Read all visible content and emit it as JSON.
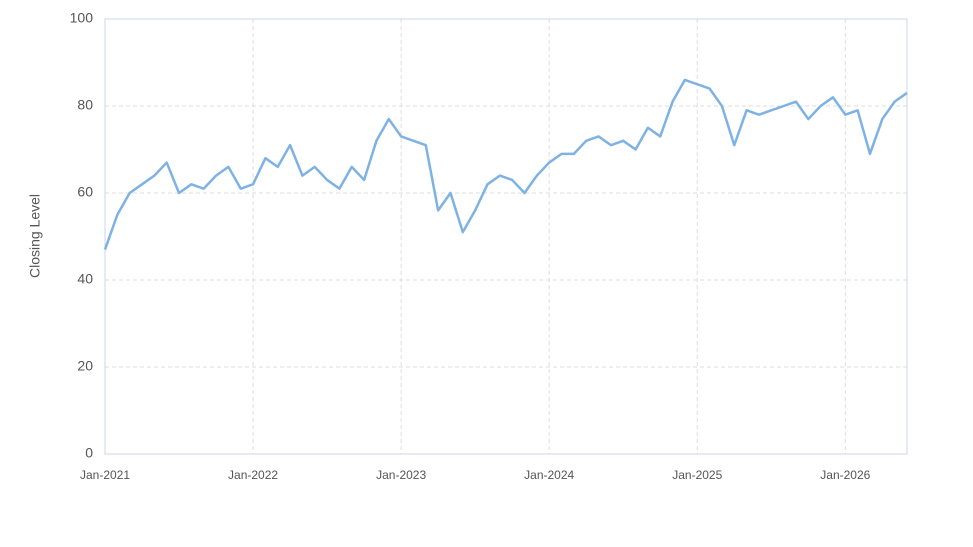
{
  "chart_data": {
    "type": "line",
    "y_label": "Closing Level",
    "x": [
      "2021-01",
      "2021-02",
      "2021-03",
      "2021-04",
      "2021-05",
      "2021-06",
      "2021-07",
      "2021-08",
      "2021-09",
      "2021-10",
      "2021-11",
      "2021-12",
      "2022-01",
      "2022-02",
      "2022-03",
      "2022-04",
      "2022-05",
      "2022-06",
      "2022-07",
      "2022-08",
      "2022-09",
      "2022-10",
      "2022-11",
      "2022-12",
      "2023-01",
      "2023-02",
      "2023-03",
      "2023-04",
      "2023-05",
      "2023-06",
      "2023-07",
      "2023-08",
      "2023-09",
      "2023-10",
      "2023-11",
      "2023-12",
      "2024-01",
      "2024-02",
      "2024-03",
      "2024-04",
      "2024-05",
      "2024-06",
      "2024-07",
      "2024-08",
      "2024-09",
      "2024-10",
      "2024-11",
      "2024-12",
      "2025-01",
      "2025-02",
      "2025-03",
      "2025-04",
      "2025-05",
      "2025-06",
      "2025-07",
      "2025-08",
      "2025-09",
      "2025-10",
      "2025-11",
      "2025-12",
      "2026-01",
      "2026-02",
      "2026-03",
      "2026-04",
      "2026-05",
      "2026-06"
    ],
    "series": [
      {
        "name": "Closing Level",
        "color": "#7eb2e4",
        "values": [
          47,
          55,
          60,
          62,
          64,
          67,
          60,
          62,
          61,
          64,
          66,
          61,
          62,
          68,
          66,
          71,
          64,
          66,
          63,
          61,
          66,
          63,
          72,
          77,
          73,
          72,
          71,
          56,
          60,
          51,
          56,
          62,
          64,
          63,
          60,
          64,
          67,
          69,
          69,
          72,
          73,
          71,
          72,
          70,
          75,
          73,
          81,
          86,
          85,
          84,
          80,
          71,
          79,
          78,
          79,
          80,
          81,
          77,
          80,
          82,
          78,
          79,
          69,
          77,
          81,
          83
        ]
      }
    ],
    "xlim": [
      "2021-01",
      "2026-06"
    ],
    "xticks": [
      {
        "value": "2021-01",
        "label": "Jan-2021"
      },
      {
        "value": "2022-01",
        "label": "Jan-2022"
      },
      {
        "value": "2023-01",
        "label": "Jan-2023"
      },
      {
        "value": "2024-01",
        "label": "Jan-2024"
      },
      {
        "value": "2025-01",
        "label": "Jan-2025"
      },
      {
        "value": "2026-01",
        "label": "Jan-2026"
      }
    ],
    "ylim": [
      0,
      100
    ],
    "yticks": [
      0,
      20,
      40,
      60,
      80,
      100
    ],
    "grid": true
  }
}
